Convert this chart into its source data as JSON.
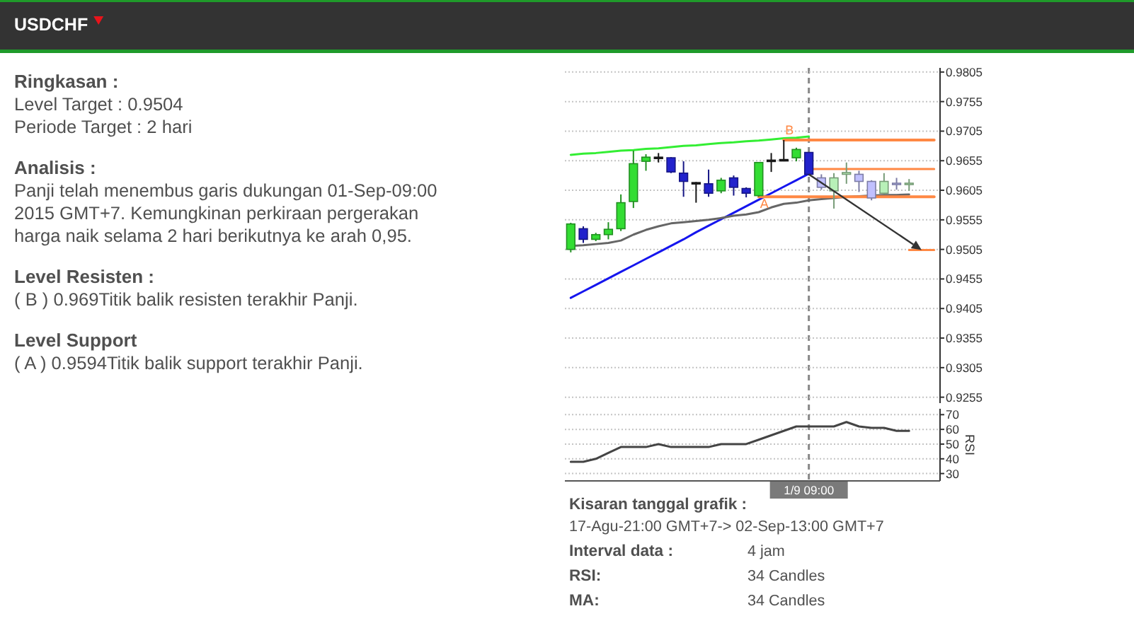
{
  "chart_data": [
    {
      "type": "other",
      "title": "USDCHF"
    },
    {
      "type": "other",
      "title": "Ringkasan :",
      "annotations": [
        "Level Target : 0.9504",
        "Periode Target : 2 hari"
      ]
    },
    {
      "type": "other",
      "title": "Analisis :",
      "annotations": [
        "Panji telah menembus garis dukungan 01-Sep-09:00",
        "2015 GMT+7. Kemungkinan perkiraan pergerakan",
        "harga naik selama 2 hari berikutnya ke arah 0,95."
      ]
    },
    {
      "type": "other",
      "title": "Level Resisten :",
      "annotations": [
        "( B ) 0.969Titik balik resisten terakhir Panji."
      ]
    },
    {
      "type": "other",
      "title": "Level Support",
      "annotations": [
        "( A ) 0.9594Titik balik support terakhir Panji."
      ]
    },
    {
      "type": "candlestick",
      "categories": [
        null,
        null,
        null,
        null,
        null,
        null,
        null,
        null,
        null,
        null,
        null,
        null,
        null,
        null,
        null,
        null,
        null,
        null,
        null,
        null,
        null,
        null,
        null,
        null,
        null,
        null,
        null,
        null,
        null,
        null
      ],
      "ohlc": [
        [
          0.9505,
          0.955,
          0.95,
          0.9548
        ],
        [
          0.954,
          0.9544,
          0.9516,
          0.9522
        ],
        [
          0.9522,
          0.9533,
          0.9519,
          0.953
        ],
        [
          0.953,
          0.9551,
          0.9522,
          0.9539
        ],
        [
          0.954,
          0.9598,
          0.9536,
          0.9584
        ],
        [
          0.9586,
          0.9672,
          0.9575,
          0.965
        ],
        [
          0.9654,
          0.9666,
          0.9638,
          0.9661
        ],
        [
          0.9661,
          0.9668,
          0.9652,
          0.966
        ],
        [
          0.966,
          0.9661,
          0.9634,
          0.9636
        ],
        [
          0.9634,
          0.9654,
          0.9594,
          0.962
        ],
        [
          0.9618,
          0.9619,
          0.9584,
          0.9617
        ],
        [
          0.9616,
          0.964,
          0.9594,
          0.96
        ],
        [
          0.9604,
          0.9626,
          0.96,
          0.9622
        ],
        [
          0.9626,
          0.963,
          0.9596,
          0.961
        ],
        [
          0.9608,
          0.961,
          0.9593,
          0.96
        ],
        [
          0.9596,
          0.9652,
          0.9594,
          0.9652
        ],
        [
          0.9656,
          0.9668,
          0.9636,
          0.9655
        ],
        [
          0.9656,
          0.969,
          0.9654,
          0.9657
        ],
        [
          0.966,
          0.9677,
          0.9654,
          0.9674
        ],
        [
          0.9669,
          0.9669,
          0.963,
          0.9632
        ],
        [
          0.9626,
          0.9632,
          0.9606,
          0.961
        ],
        [
          0.9604,
          0.9634,
          0.9574,
          0.9626
        ],
        [
          0.9632,
          0.9652,
          0.9616,
          0.9635
        ],
        [
          0.9632,
          0.9638,
          0.9602,
          0.962
        ],
        [
          0.962,
          0.9622,
          0.9588,
          0.9592
        ],
        [
          0.96,
          0.9634,
          0.9598,
          0.962
        ],
        [
          0.9617,
          0.9626,
          0.9606,
          0.9615
        ],
        [
          0.9615,
          0.9624,
          0.9604,
          0.9617
        ],
        null,
        null
      ],
      "colors": [
        "#33dd33",
        "#2222cc",
        "#33dd33",
        "#33dd33",
        "#33dd33",
        "#33dd33",
        "#33dd33",
        "#222222",
        "#2222cc",
        "#2222cc",
        "#222222",
        "#2222cc",
        "#33dd33",
        "#2222cc",
        "#2222cc",
        "#33dd33",
        "#222222",
        "#222222",
        "#33dd33",
        "#2222cc",
        "#c0c0ff",
        "#b8f0b8",
        "#b8f0b8",
        "#c0c0ff",
        "#c0c0ff",
        "#b8f0b8",
        "#c0c0ff",
        "#b8f0b8",
        null,
        null
      ],
      "series": [
        {
          "type": "line",
          "color": "#33ee33",
          "values": [
            0.9665,
            0.9667,
            0.9668,
            0.967,
            0.9672,
            0.9673,
            0.9675,
            0.9676,
            0.9678,
            0.968,
            0.9681,
            0.9683,
            0.9685,
            0.9686,
            0.9688,
            0.9689,
            0.9691,
            0.9693,
            0.9694,
            0.9696,
            null,
            null,
            null,
            null,
            null,
            null,
            null,
            null,
            null,
            null
          ]
        },
        {
          "type": "line",
          "color": "#1515ee",
          "values": [
            0.9423,
            0.9434,
            0.9445,
            0.9456,
            0.9467,
            0.9478,
            0.9489,
            0.95,
            0.9511,
            0.9522,
            0.9534,
            0.9545,
            0.9556,
            0.9567,
            0.9578,
            0.9589,
            0.96,
            0.9611,
            0.9622,
            0.9633,
            null,
            null,
            null,
            null,
            null,
            null,
            null,
            null,
            null,
            null
          ]
        },
        {
          "type": "line",
          "color": "#666666",
          "values": [
            0.9511,
            0.9512,
            0.9514,
            0.9516,
            0.952,
            0.953,
            0.9538,
            0.9544,
            0.9549,
            0.9551,
            0.9553,
            0.9555,
            0.9558,
            0.9562,
            0.9564,
            0.9568,
            0.9576,
            0.9582,
            0.9584,
            0.9588,
            0.959,
            0.9592,
            0.9594,
            0.9595,
            0.9596,
            0.9597,
            0.9597,
            0.9598,
            null,
            null
          ]
        },
        {
          "type": "line",
          "name": "B",
          "color": "#ff8844",
          "values": [
            null,
            null,
            null,
            null,
            null,
            null,
            null,
            null,
            null,
            null,
            null,
            null,
            null,
            null,
            null,
            null,
            null,
            0.969,
            0.969,
            0.969,
            0.969,
            0.969,
            0.969,
            0.969,
            0.969,
            0.969,
            0.969,
            0.969,
            0.969,
            0.969
          ]
        },
        {
          "type": "line",
          "name": "A",
          "color": "#ff8844",
          "values": [
            null,
            null,
            null,
            null,
            null,
            null,
            null,
            null,
            null,
            null,
            null,
            null,
            null,
            null,
            null,
            0.9594,
            0.9594,
            0.9594,
            0.9594,
            0.9594,
            0.9594,
            0.9594,
            0.9594,
            0.9594,
            0.9594,
            0.9594,
            0.9594,
            0.9594,
            0.9594,
            0.9594
          ]
        },
        {
          "type": "line",
          "color": "#ff8844",
          "values": [
            null,
            null,
            null,
            null,
            null,
            null,
            null,
            null,
            null,
            null,
            null,
            null,
            null,
            null,
            null,
            null,
            null,
            null,
            null,
            0.9641,
            0.9641,
            0.9641,
            0.9641,
            0.9641,
            0.9641,
            0.9641,
            0.9641,
            0.9641,
            0.9641,
            0.9641
          ]
        },
        {
          "type": "line",
          "color": "#ff8844",
          "values": [
            null,
            null,
            null,
            null,
            null,
            null,
            null,
            null,
            null,
            null,
            null,
            null,
            null,
            null,
            null,
            null,
            null,
            null,
            null,
            null,
            null,
            null,
            null,
            null,
            null,
            null,
            null,
            0.9504,
            0.9504,
            0.9504
          ]
        }
      ],
      "ylim": [
        0.9245,
        0.9812
      ],
      "yticks": [
        0.9255,
        0.9305,
        0.9355,
        0.9405,
        0.9455,
        0.9505,
        0.9555,
        0.9605,
        0.9655,
        0.9705,
        0.9755,
        0.9805
      ],
      "grid": "y",
      "tick_labels": "y"
    },
    {
      "type": "line",
      "categories": [
        null,
        null,
        null,
        null,
        null,
        null,
        null,
        null,
        null,
        null,
        null,
        null,
        null,
        null,
        null,
        null,
        null,
        null,
        null,
        "1/9 09:00",
        null,
        null,
        null,
        null,
        null,
        null,
        null,
        null,
        null,
        null
      ],
      "series": [
        {
          "color": "#444444",
          "values": [
            38,
            38,
            40,
            44,
            48,
            48,
            48,
            50,
            48,
            48,
            48,
            48,
            50,
            50,
            50,
            53,
            56,
            59,
            62,
            62,
            62,
            62,
            65,
            62,
            61,
            61,
            59,
            59,
            null,
            null
          ]
        }
      ],
      "ylim": [
        25,
        74
      ],
      "yticks": [
        30,
        40,
        50,
        60,
        70
      ],
      "ylabel": "RSI",
      "grid": "y",
      "ref_lines": [
        {
          "axis": "x",
          "value": "1/9 09:00",
          "color": "#888888",
          "line_style": "dashed"
        }
      ]
    },
    {
      "type": "other",
      "title": "Kisaran tanggal grafik :",
      "annotations": [
        "17-Agu-21:00 GMT+7-> 02-Sep-13:00 GMT+7"
      ]
    },
    {
      "type": "other",
      "annotations": [
        "Interval data :",
        "4 jam",
        "RSI:",
        "34 Candles",
        "MA:",
        "34 Candles"
      ]
    }
  ]
}
